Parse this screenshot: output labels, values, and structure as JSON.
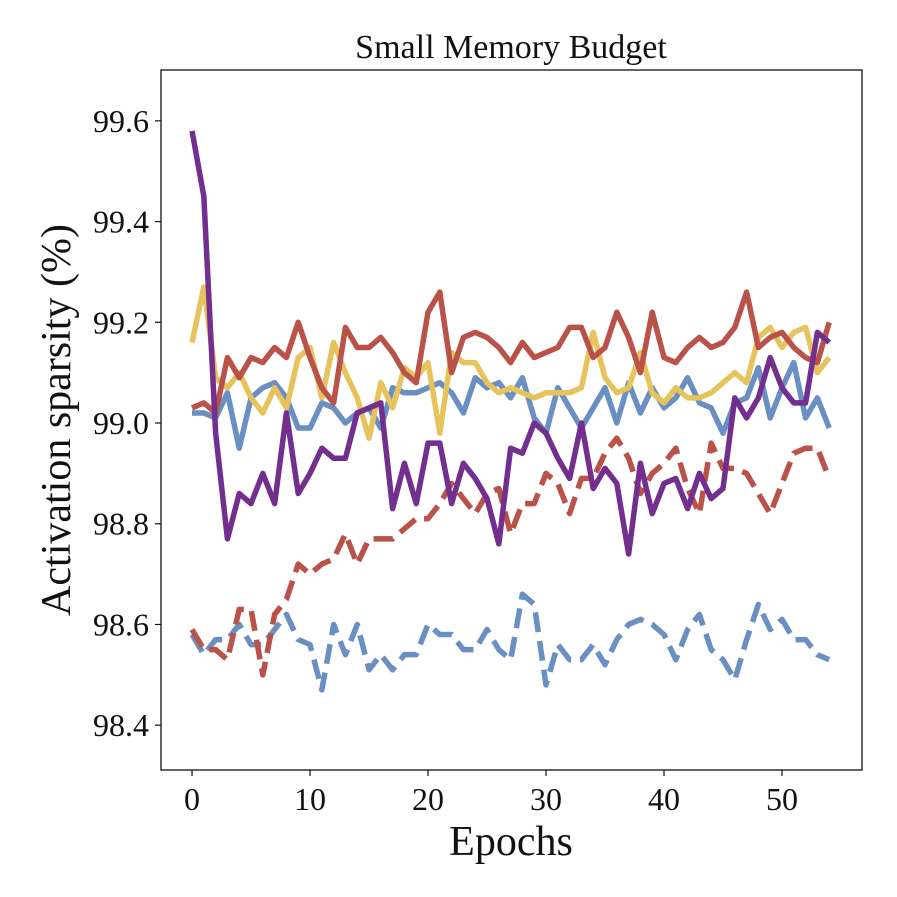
{
  "chart_data": {
    "type": "line",
    "title": "Small Memory Budget",
    "xlabel": "Epochs",
    "ylabel": "Activation sparsity (%)",
    "x": [
      0,
      1,
      2,
      3,
      4,
      5,
      6,
      7,
      8,
      9,
      10,
      11,
      12,
      13,
      14,
      15,
      16,
      17,
      18,
      19,
      20,
      21,
      22,
      23,
      24,
      25,
      26,
      27,
      28,
      29,
      30,
      31,
      32,
      33,
      34,
      35,
      36,
      37,
      38,
      39,
      40,
      41,
      42,
      43,
      44,
      45,
      46,
      47,
      48,
      49,
      50,
      51,
      52,
      53,
      54
    ],
    "xlim": [
      -2.63,
      56.78
    ],
    "xticks": [
      0,
      10,
      20,
      30,
      40,
      50
    ],
    "ylim": [
      98.311,
      99.701
    ],
    "yticks": [
      99.6,
      99.4,
      99.2,
      {
        "value": 99,
        "label": "99.0"
      },
      98.8,
      98.6,
      98.4
    ],
    "grid": false,
    "series": [
      {
        "color": "#6a8fc2",
        "dash": true,
        "values": [
          98.58,
          98.54,
          98.57,
          98.57,
          98.6,
          98.56,
          98.56,
          98.59,
          98.62,
          98.57,
          98.56,
          98.47,
          98.6,
          98.54,
          98.6,
          98.51,
          98.54,
          98.51,
          98.54,
          98.54,
          98.6,
          98.58,
          98.58,
          98.55,
          98.55,
          98.59,
          98.55,
          98.53,
          98.66,
          98.64,
          98.48,
          98.56,
          98.53,
          98.53,
          98.56,
          98.52,
          98.57,
          98.6,
          98.61,
          98.6,
          98.58,
          98.53,
          98.59,
          98.62,
          98.55,
          98.53,
          98.49,
          98.57,
          98.64,
          98.59,
          98.61,
          98.57,
          98.57,
          98.54,
          98.53
        ]
      },
      {
        "color": "#b9534a",
        "dash": true,
        "values": [
          98.59,
          98.55,
          98.55,
          98.53,
          98.63,
          98.63,
          98.5,
          98.62,
          98.65,
          98.72,
          98.7,
          98.72,
          98.73,
          98.78,
          98.72,
          98.77,
          98.77,
          98.77,
          98.79,
          98.81,
          98.81,
          98.84,
          98.88,
          98.85,
          98.82,
          98.86,
          98.87,
          98.78,
          98.84,
          98.84,
          98.9,
          98.88,
          98.82,
          98.89,
          98.89,
          98.94,
          98.97,
          98.93,
          98.86,
          98.9,
          98.92,
          98.95,
          98.87,
          98.82,
          98.96,
          98.91,
          98.91,
          98.9,
          98.86,
          98.82,
          98.88,
          98.94,
          98.95,
          98.95,
          98.89
        ]
      },
      {
        "color": "#6a8fc2",
        "dash": false,
        "values": [
          99.02,
          99.02,
          99.01,
          99.06,
          98.95,
          99.05,
          99.07,
          99.08,
          99.05,
          98.99,
          98.99,
          99.04,
          99.03,
          99.0,
          99.02,
          99.03,
          98.99,
          99.07,
          99.06,
          99.06,
          99.07,
          99.08,
          99.06,
          99.02,
          99.09,
          99.07,
          99.08,
          99.05,
          99.09,
          99.01,
          98.98,
          99.07,
          99.03,
          98.99,
          99.03,
          99.07,
          99.0,
          99.08,
          99.02,
          99.07,
          99.03,
          99.05,
          99.09,
          99.04,
          99.03,
          98.98,
          99.04,
          99.05,
          99.11,
          99.01,
          99.07,
          99.12,
          99.01,
          99.05,
          98.99
        ]
      },
      {
        "color": "#e6c35c",
        "dash": false,
        "values": [
          99.16,
          99.27,
          99.09,
          99.07,
          99.1,
          99.05,
          99.02,
          99.07,
          99.03,
          99.13,
          99.15,
          99.05,
          99.16,
          99.1,
          99.05,
          98.97,
          99.08,
          99.03,
          99.11,
          99.09,
          99.12,
          98.98,
          99.14,
          99.12,
          99.12,
          99.08,
          99.06,
          99.07,
          99.06,
          99.05,
          99.06,
          99.06,
          99.06,
          99.07,
          99.18,
          99.09,
          99.06,
          99.07,
          99.14,
          99.06,
          99.04,
          99.07,
          99.05,
          99.05,
          99.06,
          99.08,
          99.1,
          99.08,
          99.17,
          99.19,
          99.15,
          99.18,
          99.19,
          99.1,
          99.13
        ]
      },
      {
        "color": "#b9534a",
        "dash": false,
        "values": [
          99.03,
          99.04,
          99.02,
          99.13,
          99.09,
          99.13,
          99.12,
          99.15,
          99.13,
          99.2,
          99.13,
          99.07,
          99.04,
          99.19,
          99.15,
          99.15,
          99.17,
          99.14,
          99.1,
          99.08,
          99.22,
          99.26,
          99.1,
          99.17,
          99.18,
          99.17,
          99.15,
          99.12,
          99.16,
          99.13,
          99.14,
          99.15,
          99.19,
          99.19,
          99.13,
          99.15,
          99.22,
          99.17,
          99.1,
          99.22,
          99.13,
          99.12,
          99.15,
          99.17,
          99.15,
          99.16,
          99.19,
          99.26,
          99.15,
          99.17,
          99.18,
          99.15,
          99.13,
          99.12,
          99.2
        ]
      },
      {
        "color": "#722f8e",
        "dash": false,
        "values": [
          99.58,
          99.45,
          98.98,
          98.77,
          98.86,
          98.84,
          98.9,
          98.84,
          99.02,
          98.86,
          98.9,
          98.95,
          98.93,
          98.93,
          99.02,
          99.03,
          99.04,
          98.83,
          98.92,
          98.84,
          98.96,
          98.96,
          98.84,
          98.92,
          98.89,
          98.85,
          98.76,
          98.95,
          98.94,
          99.0,
          98.98,
          98.93,
          98.89,
          99.0,
          98.87,
          98.91,
          98.88,
          98.74,
          98.92,
          98.82,
          98.88,
          98.89,
          98.83,
          98.9,
          98.85,
          98.87,
          99.05,
          99.01,
          99.05,
          99.13,
          99.07,
          99.04,
          99.04,
          99.18,
          99.16
        ]
      }
    ]
  }
}
